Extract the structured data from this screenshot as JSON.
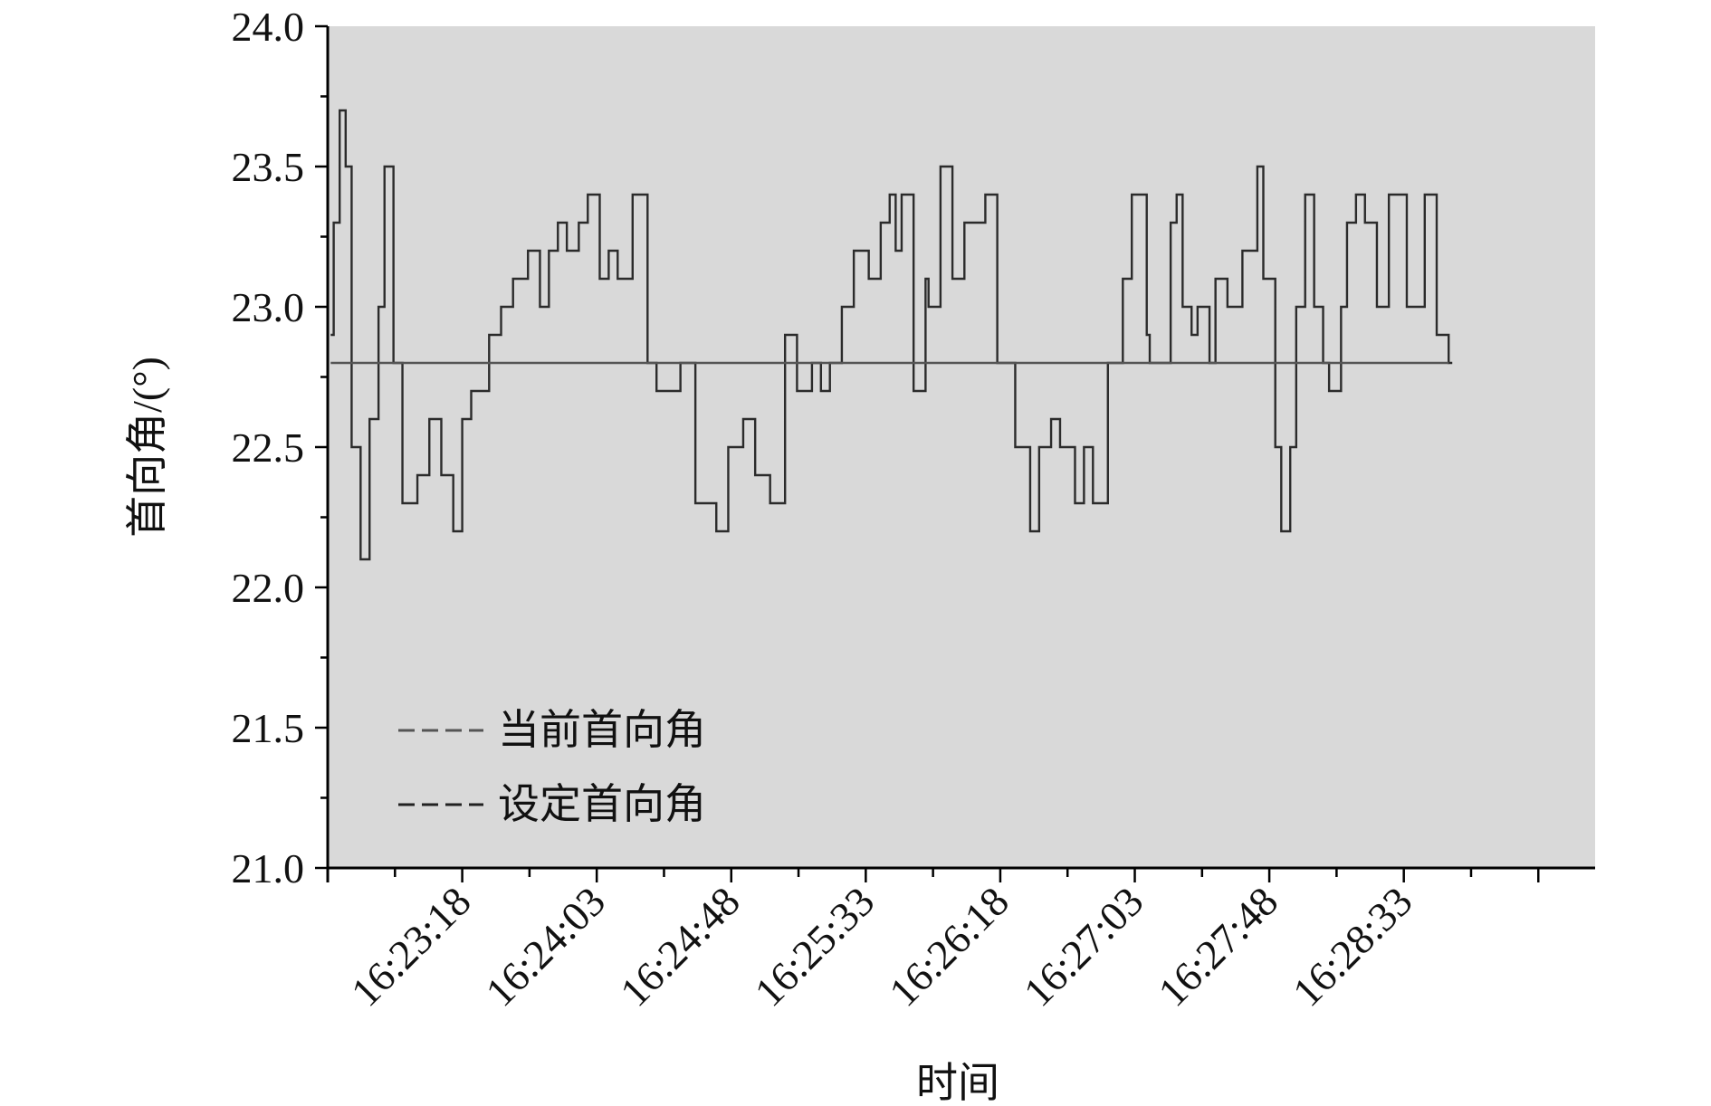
{
  "chart_data": {
    "type": "line",
    "title": "",
    "xlabel": "时间",
    "ylabel": "首向角/(°)",
    "x_origin_time": "16:22:33",
    "x_unit": "seconds since 16:22:33",
    "xlim": [
      0,
      424
    ],
    "ylim": [
      21.0,
      24.0
    ],
    "yticks": [
      21.0,
      21.5,
      22.0,
      22.5,
      23.0,
      23.5,
      24.0
    ],
    "ytick_labels": [
      "21.0",
      "21.5",
      "22.0",
      "22.5",
      "23.0",
      "23.5",
      "24.0"
    ],
    "xticks": [
      45,
      90,
      135,
      180,
      225,
      270,
      315,
      360
    ],
    "xtick_labels": [
      "16:23:18",
      "16:24:03",
      "16:24:48",
      "16:25:33",
      "16:26:18",
      "16:27:03",
      "16:27:48",
      "16:28:33"
    ],
    "grid": false,
    "background": "#d9d9d9",
    "legend": {
      "placement": "bottom-left",
      "entries": [
        "当前首向角",
        "设定首向角"
      ]
    },
    "series": [
      {
        "name": "当前首向角",
        "color": "#2b2b2b",
        "style": "step",
        "x": [
          1,
          2,
          4,
          6,
          8,
          11,
          14,
          17,
          19,
          22,
          25,
          30,
          34,
          38,
          42,
          45,
          48,
          54,
          58,
          62,
          67,
          71,
          74,
          77,
          80,
          84,
          87,
          91,
          94,
          97,
          102,
          107,
          110,
          116,
          118,
          123,
          127,
          130,
          134,
          139,
          143,
          148,
          153,
          157,
          162,
          165,
          168,
          172,
          176,
          181,
          185,
          188,
          190,
          192,
          196,
          200,
          201,
          205,
          209,
          213,
          219,
          220,
          224,
          230,
          235,
          238,
          242,
          245,
          250,
          253,
          256,
          261,
          266,
          269,
          274,
          275,
          279,
          282,
          284,
          286,
          289,
          291,
          295,
          297,
          301,
          306,
          311,
          313,
          317,
          319,
          322,
          324,
          327,
          330,
          333,
          335,
          339,
          341,
          344,
          347,
          351,
          355,
          361,
          363,
          367,
          371,
          374,
          375
        ],
        "y": [
          22.9,
          23.3,
          23.7,
          23.5,
          22.5,
          22.1,
          22.6,
          23.0,
          23.5,
          22.8,
          22.3,
          22.4,
          22.6,
          22.4,
          22.2,
          22.6,
          22.7,
          22.9,
          23.0,
          23.1,
          23.2,
          23.0,
          23.2,
          23.3,
          23.2,
          23.3,
          23.4,
          23.1,
          23.2,
          23.1,
          23.4,
          22.8,
          22.7,
          22.7,
          22.8,
          22.3,
          22.3,
          22.2,
          22.5,
          22.6,
          22.4,
          22.3,
          22.9,
          22.7,
          22.8,
          22.7,
          22.8,
          23.0,
          23.2,
          23.1,
          23.3,
          23.4,
          23.2,
          23.4,
          22.7,
          23.1,
          23.0,
          23.5,
          23.1,
          23.3,
          23.3,
          23.4,
          22.8,
          22.5,
          22.2,
          22.5,
          22.6,
          22.5,
          22.3,
          22.5,
          22.3,
          22.8,
          23.1,
          23.4,
          22.9,
          22.8,
          22.8,
          23.3,
          23.4,
          23.0,
          22.9,
          23.0,
          22.8,
          23.1,
          23.0,
          23.2,
          23.5,
          23.1,
          22.5,
          22.2,
          22.5,
          23.0,
          23.4,
          23.0,
          22.8,
          22.7,
          23.0,
          23.3,
          23.4,
          23.3,
          23.0,
          23.4,
          23.0,
          23.0,
          23.4,
          22.9,
          22.9,
          22.8
        ]
      },
      {
        "name": "设定首向角",
        "color": "#555555",
        "style": "line",
        "x": [
          1,
          375
        ],
        "y": [
          22.8,
          22.8
        ]
      }
    ]
  }
}
